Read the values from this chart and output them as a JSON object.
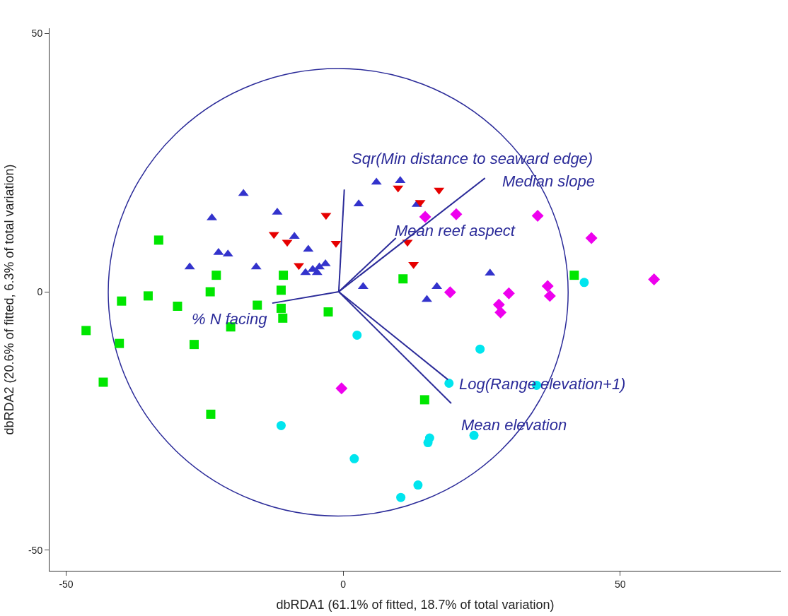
{
  "chart_data": {
    "type": "scatter",
    "xlabel": "dbRDA1 (61.1% of fitted, 18.7% of total variation)",
    "ylabel": "dbRDA2 (20.6% of fitted, 6.3% of total variation)",
    "xlim": [
      -53,
      79
    ],
    "ylim": [
      -54,
      51
    ],
    "xticks": [
      -50,
      0,
      50
    ],
    "yticks": [
      -50,
      0,
      50
    ],
    "grid": false,
    "legend": false,
    "series": [
      {
        "marker": "square",
        "color": "#00e600",
        "x": [
          -46.4,
          -43.3,
          -40.4,
          -40.0,
          -35.2,
          -33.3,
          -29.9,
          -26.9,
          -24.0,
          -22.9,
          -23.9,
          -20.3,
          -15.5,
          -11.2,
          -10.8,
          -11.2,
          -10.9,
          -2.7,
          10.8,
          14.7,
          41.7
        ],
        "values": [
          -7.5,
          -17.5,
          -10.0,
          -1.8,
          -0.8,
          10.0,
          -2.8,
          -10.2,
          0.0,
          3.2,
          -23.7,
          -6.8,
          -2.6,
          0.3,
          3.2,
          -3.2,
          -5.1,
          -3.9,
          2.5,
          -20.9,
          3.2
        ]
      },
      {
        "marker": "triangle",
        "color": "#3333cc",
        "x": [
          -18.0,
          -23.7,
          -27.7,
          -22.5,
          -20.8,
          -15.7,
          -11.9,
          -8.8,
          -6.3,
          -6.8,
          -5.5,
          -4.3,
          -3.2,
          -4.7,
          2.8,
          6.0,
          10.3,
          13.3,
          3.6,
          15.1,
          16.9,
          26.5
        ],
        "values": [
          19.0,
          14.3,
          4.8,
          7.6,
          7.3,
          4.8,
          15.4,
          10.7,
          8.2,
          3.7,
          4.3,
          4.8,
          5.4,
          3.7,
          17.0,
          21.2,
          21.5,
          16.9,
          1.0,
          -1.5,
          1.0,
          3.6
        ]
      },
      {
        "marker": "triangle-down",
        "color": "#e60000",
        "x": [
          -12.5,
          -10.1,
          -8.0,
          -3.1,
          -1.3,
          9.9,
          13.9,
          17.3,
          11.6,
          12.7
        ],
        "values": [
          11.1,
          9.6,
          5.1,
          14.8,
          9.4,
          20.1,
          17.3,
          19.7,
          9.6,
          5.3
        ]
      },
      {
        "marker": "diamond",
        "color": "#ee00ee",
        "x": [
          -0.3,
          14.8,
          20.4,
          19.3,
          28.1,
          28.4,
          29.9,
          35.1,
          36.9,
          37.3,
          44.8,
          56.1
        ],
        "values": [
          -18.7,
          14.5,
          15.0,
          -0.1,
          -2.5,
          -4.0,
          -0.3,
          14.7,
          1.1,
          -0.8,
          10.4,
          2.4
        ]
      },
      {
        "marker": "circle",
        "color": "#00e5ee",
        "x": [
          2.5,
          24.7,
          19.1,
          34.9,
          -11.2,
          2.0,
          15.3,
          15.6,
          23.6,
          10.4,
          13.5,
          43.5
        ],
        "values": [
          -8.4,
          -11.1,
          -17.7,
          -18.1,
          -25.9,
          -32.3,
          -29.2,
          -28.3,
          -27.8,
          -39.8,
          -37.4,
          1.8
        ]
      },
      {
        "type": "line",
        "name": "Sqr(Min distance to seaward edge)",
        "color": "#2b2b99",
        "x": [
          -0.8,
          0.2
        ],
        "values": [
          0.0,
          19.8
        ]
      },
      {
        "type": "line",
        "name": "Median slope",
        "color": "#2b2b99",
        "x": [
          -0.8,
          25.6
        ],
        "values": [
          0.0,
          22.0
        ]
      },
      {
        "type": "line",
        "name": "Mean reef aspect",
        "color": "#2b2b99",
        "x": [
          -0.8,
          9.5
        ],
        "values": [
          0.0,
          10.4
        ]
      },
      {
        "type": "line",
        "name": "% N facing",
        "color": "#2b2b99",
        "x": [
          -0.8,
          -12.8
        ],
        "values": [
          0.0,
          -2.2
        ]
      },
      {
        "type": "line",
        "name": "Log(Range elevation+1)",
        "color": "#2b2b99",
        "x": [
          -0.8,
          18.9
        ],
        "values": [
          0.0,
          -17.0
        ]
      },
      {
        "type": "line",
        "name": "Mean elevation",
        "color": "#2b2b99",
        "x": [
          -0.8,
          19.5
        ],
        "values": [
          0.0,
          -21.6
        ]
      }
    ]
  }
}
